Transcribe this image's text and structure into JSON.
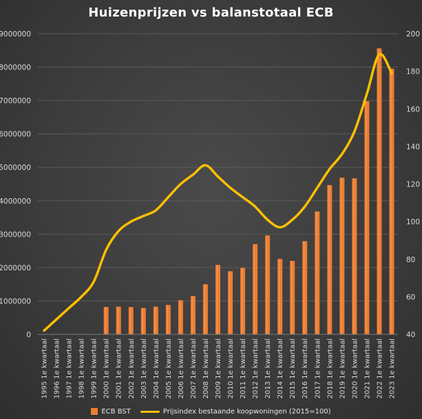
{
  "chart_data": {
    "type": "bar",
    "title": "Huizenprijzen vs balanstotaal ECB",
    "y_left_ticks": [
      "0",
      "1000000",
      "2000000",
      "3000000",
      "4000000",
      "5000000",
      "6000000",
      "7000000",
      "8000000",
      "9000000"
    ],
    "y_left_range": [
      0,
      9000000
    ],
    "y_right_ticks": [
      "40",
      "60",
      "80",
      "100",
      "120",
      "140",
      "160",
      "180",
      "200"
    ],
    "y_right_range": [
      40,
      200
    ],
    "grid": true,
    "legend_position": "bottom",
    "colors": {
      "bars": "#ed7d31",
      "line": "#ffc000",
      "grid": "#5a5a5a",
      "text": "#d9d9d9"
    },
    "categories": [
      "1995 1e kwartaal",
      "1996 1e kwartaal",
      "1997 1e kwartaal",
      "1998 1e kwartaal",
      "1999 1e kwartaal",
      "2000 1e kwartaal",
      "2001 1e kwartaal",
      "2002 1e kwartaal",
      "2003 1e kwartaal",
      "2004 1e kwartaal",
      "2005 1e kwartaal",
      "2006 1e kwartaal",
      "2007 1e kwartaal",
      "2008 1e kwartaal",
      "2009 1e kwartaal",
      "2010 1e kwartaal",
      "2011 1e kwartaal",
      "2012 1e kwartaal",
      "2013 1e kwartaal",
      "2014 1e kwartaal",
      "2015 1e kwartaal",
      "2016 1e kwartaal",
      "2017 1e kwartaal",
      "2018 1e kwartaal",
      "2019 1e kwartaal",
      "2020 1e kwartaal",
      "2021 1e kwartaal",
      "2022 1e kwartaal",
      "2023 1e kwartaal"
    ],
    "series": [
      {
        "name": "ECB BST",
        "axis": "left",
        "type": "bar",
        "values": [
          0,
          0,
          0,
          0,
          0,
          820000,
          830000,
          820000,
          790000,
          830000,
          880000,
          1020000,
          1150000,
          1500000,
          2080000,
          1890000,
          1990000,
          2700000,
          2960000,
          2260000,
          2200000,
          2790000,
          3680000,
          4470000,
          4690000,
          4670000,
          6980000,
          8560000,
          7950000
        ]
      },
      {
        "name": "Prijsindex bestaande koopwoningen (2015=100)",
        "axis": "right",
        "type": "line",
        "values": [
          42,
          48,
          54,
          60,
          68,
          85,
          95,
          100,
          103,
          106,
          113,
          120,
          125,
          130,
          124,
          118,
          113,
          108,
          101,
          97,
          101,
          108,
          118,
          128,
          136,
          148,
          168,
          189,
          179
        ]
      }
    ]
  }
}
